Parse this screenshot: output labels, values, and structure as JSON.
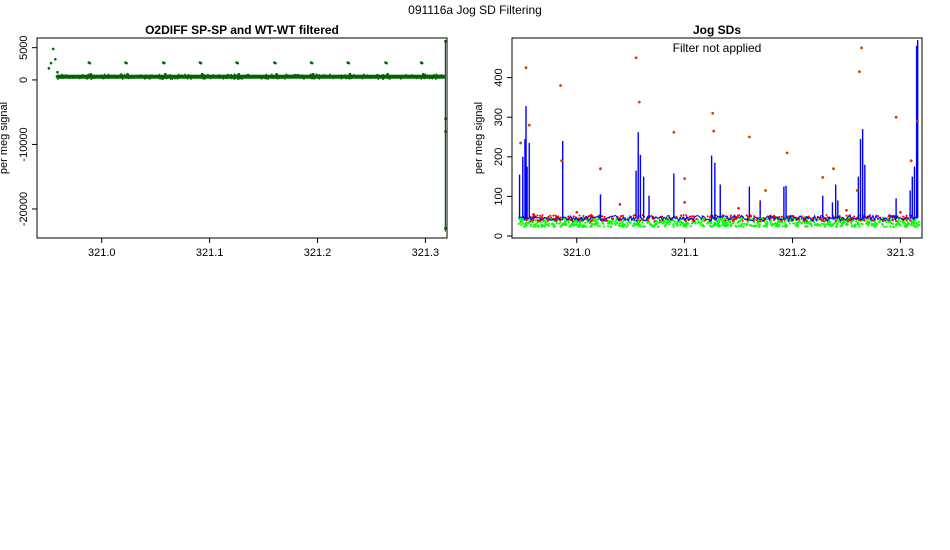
{
  "page_title": "091116a   Jog SD Filtering",
  "chart_data": [
    {
      "type": "scatter",
      "title": "O2DIFF SP-SP and WT-WT filtered",
      "xlabel": "",
      "ylabel": "per meg signal",
      "xlim": [
        320.94,
        321.32
      ],
      "ylim": [
        -24500,
        6500
      ],
      "x_ticks": [
        321.0,
        321.1,
        321.2,
        321.3
      ],
      "x_tick_labels": [
        "321.0",
        "321.1",
        "321.2",
        "321.3"
      ],
      "y_ticks": [
        5000,
        0,
        -10000,
        -20000
      ],
      "y_tick_labels": [
        "5000",
        "0",
        "-10000",
        "-20000"
      ],
      "grid": false,
      "series": [
        {
          "color": "#006400",
          "baseline": 500,
          "x": [
            320.951,
            320.953,
            320.955,
            320.957,
            320.959,
            320.988,
            320.989,
            320.99,
            320.991,
            321.022,
            321.023,
            321.024,
            321.025,
            321.057,
            321.058,
            321.059,
            321.06,
            321.091,
            321.092,
            321.093,
            321.094,
            321.125,
            321.126,
            321.127,
            321.128,
            321.16,
            321.161,
            321.162,
            321.163,
            321.194,
            321.195,
            321.196,
            321.197,
            321.228,
            321.229,
            321.23,
            321.231,
            321.263,
            321.264,
            321.265,
            321.266,
            321.296,
            321.297,
            321.298,
            321.299,
            321.3185,
            321.3185,
            321.3185,
            321.3185
          ],
          "y": [
            1800,
            2600,
            4800,
            3200,
            1200,
            2700,
            2600,
            900,
            300,
            2700,
            2600,
            900,
            300,
            2700,
            2600,
            900,
            300,
            2700,
            2600,
            900,
            300,
            2700,
            2600,
            900,
            300,
            2700,
            2600,
            900,
            300,
            2700,
            2600,
            900,
            300,
            2700,
            2600,
            900,
            300,
            2700,
            2600,
            900,
            300,
            2700,
            2600,
            900,
            300,
            6000,
            -6000,
            -8000,
            -23000
          ]
        }
      ]
    },
    {
      "type": "scatter",
      "title": "Jog SDs",
      "annotation": "Filter not applied",
      "xlabel": "",
      "ylabel": "per meg signal",
      "xlim": [
        320.94,
        321.32
      ],
      "ylim": [
        -5,
        500
      ],
      "x_ticks": [
        321.0,
        321.1,
        321.2,
        321.3
      ],
      "x_tick_labels": [
        "321.0",
        "321.1",
        "321.2",
        "321.3"
      ],
      "y_ticks": [
        0,
        100,
        200,
        300,
        400
      ],
      "y_tick_labels": [
        "0",
        "100",
        "200",
        "300",
        "400"
      ],
      "grid": false,
      "series": [
        {
          "color": "#00ff00",
          "baseline": 35,
          "x": [
            320.946,
            320.96,
            320.99,
            321.05,
            321.1,
            321.15,
            321.2,
            321.25,
            321.29,
            321.31,
            321.316
          ],
          "y": [
            18,
            40,
            30,
            30,
            30,
            33,
            30,
            30,
            18,
            45,
            100
          ]
        },
        {
          "color": "#ff0000",
          "baseline": 45,
          "x": [
            320.96,
            321.0,
            321.04,
            321.1,
            321.15,
            321.2,
            321.25,
            321.3
          ],
          "y": [
            55,
            60,
            80,
            85,
            70,
            50,
            65,
            60
          ]
        },
        {
          "color": "#0000ff",
          "baseline": 45,
          "x": [
            320.947,
            320.95,
            320.952,
            320.953,
            320.954,
            320.956,
            320.987,
            321.022,
            321.055,
            321.057,
            321.059,
            321.062,
            321.067,
            321.09,
            321.125,
            321.128,
            321.133,
            321.16,
            321.17,
            321.192,
            321.194,
            321.228,
            321.237,
            321.24,
            321.242,
            321.261,
            321.263,
            321.265,
            321.267,
            321.296,
            321.309,
            321.311,
            321.313,
            321.315,
            321.316
          ],
          "y": [
            155,
            200,
            245,
            328,
            175,
            235,
            240,
            105,
            165,
            262,
            205,
            150,
            102,
            158,
            203,
            185,
            130,
            125,
            90,
            125,
            127,
            102,
            85,
            130,
            90,
            150,
            245,
            270,
            180,
            95,
            115,
            150,
            175,
            480,
            495
          ]
        },
        {
          "color": "#cc4400",
          "baseline": null,
          "x": [
            320.948,
            320.953,
            320.956,
            320.985,
            320.986,
            321.022,
            321.055,
            321.058,
            321.09,
            321.1,
            321.126,
            321.127,
            321.16,
            321.175,
            321.195,
            321.228,
            321.238,
            321.26,
            321.262,
            321.264,
            321.296,
            321.31,
            321.316
          ],
          "y": [
            235,
            425,
            280,
            380,
            190,
            170,
            450,
            338,
            262,
            145,
            310,
            265,
            250,
            115,
            210,
            148,
            170,
            115,
            415,
            475,
            300,
            190,
            290
          ]
        }
      ]
    }
  ]
}
